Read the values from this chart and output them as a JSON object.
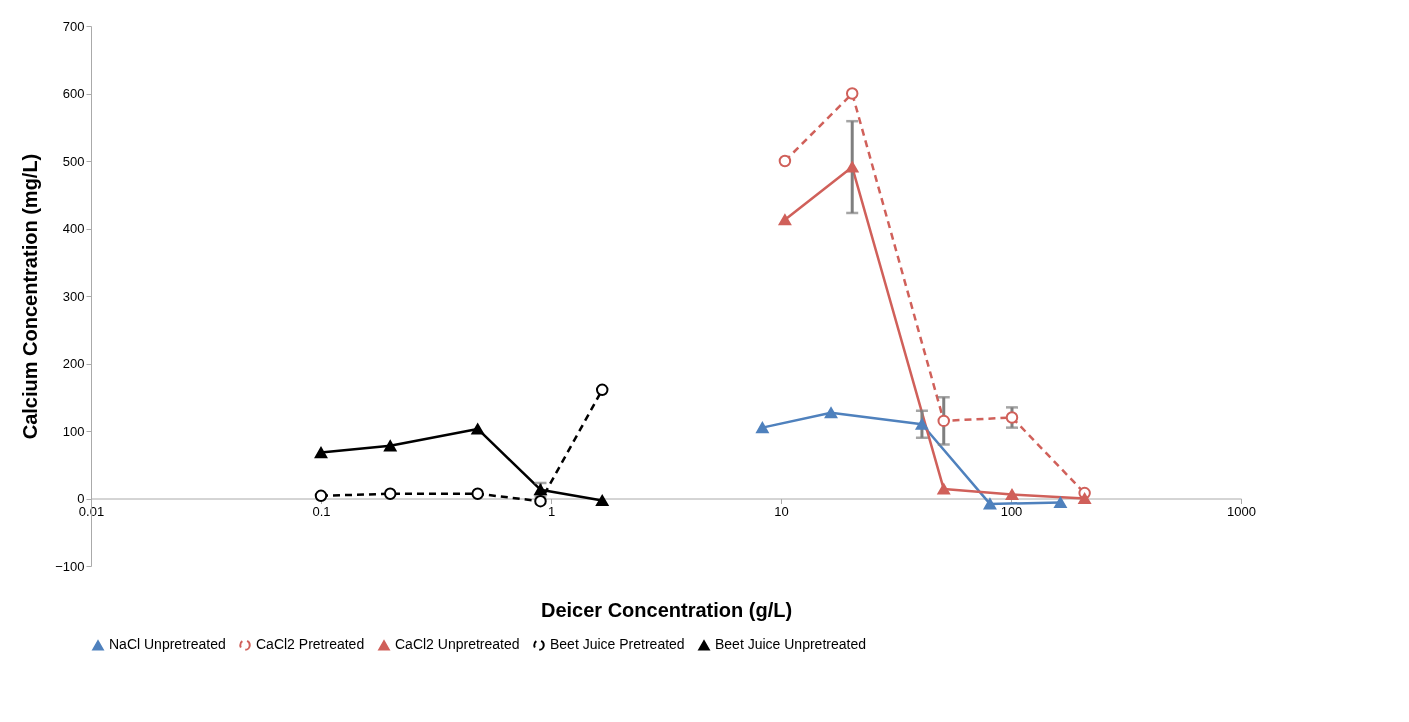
{
  "chart_data": {
    "type": "line",
    "xlabel": "Deicer Concentration (g/L)",
    "ylabel": "Calcium Concentration (mg/L)",
    "log": "x",
    "xlim": [
      0.01,
      1000
    ],
    "xticks": [
      0.01,
      0.1,
      1,
      10,
      100,
      1000
    ],
    "ylim": [
      -100,
      700
    ],
    "yticks": [
      -100,
      0,
      100,
      200,
      300,
      400,
      500,
      600,
      700
    ],
    "grid": false,
    "legend": "bottom",
    "series": [
      {
        "name": "NaCl Unpretreated",
        "color": "#4f81bd",
        "marker": "triangle",
        "line_style": "solid",
        "x": [
          8.3,
          16.5,
          41,
          81,
          164
        ],
        "values": [
          105,
          127,
          110,
          -8,
          -6
        ],
        "errors": [
          null,
          null,
          20,
          null,
          null
        ]
      },
      {
        "name": "CaCl2 Pretreated",
        "color": "#d0605a",
        "marker": "circle",
        "line_style": "dashed",
        "x": [
          10.4,
          20.4,
          51,
          101,
          209
        ],
        "values": [
          500,
          600,
          115,
          120,
          8
        ],
        "errors": [
          null,
          null,
          35,
          15,
          null
        ]
      },
      {
        "name": "CaCl2 Unpretreated",
        "color": "#d0605a",
        "marker": "triangle",
        "line_style": "solid",
        "x": [
          10.4,
          20.4,
          51,
          101,
          209
        ],
        "values": [
          413,
          491,
          14,
          6,
          0
        ],
        "errors": [
          null,
          68,
          null,
          null,
          null
        ]
      },
      {
        "name": "Beet Juice Pretreated",
        "color": "#000000",
        "marker": "circle",
        "line_style": "dashed",
        "x": [
          0.1,
          0.2,
          0.48,
          0.9,
          1.67
        ],
        "values": [
          4,
          7,
          7,
          -4,
          161
        ],
        "errors": [
          null,
          null,
          null,
          null,
          null
        ]
      },
      {
        "name": "Beet Juice Unpretreated",
        "color": "#000000",
        "marker": "triangle",
        "line_style": "solid",
        "x": [
          0.1,
          0.2,
          0.48,
          0.9,
          1.67
        ],
        "values": [
          68,
          78,
          103,
          13,
          -3
        ],
        "errors": [
          null,
          null,
          null,
          10,
          null
        ]
      }
    ]
  }
}
